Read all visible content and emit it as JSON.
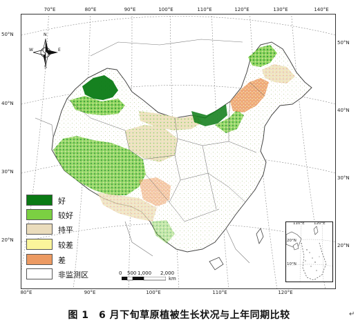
{
  "map": {
    "legend": {
      "items": [
        {
          "label": "好",
          "color": "#0a7a14"
        },
        {
          "label": "较好",
          "color": "#7bd042"
        },
        {
          "label": "持平",
          "color": "#eadcbc"
        },
        {
          "label": "较差",
          "color": "#fbf59b"
        },
        {
          "label": "差",
          "color": "#ec9a62"
        },
        {
          "label": "非监测区",
          "color": "#ffffff"
        }
      ]
    },
    "ticks": {
      "top": [
        "70°E",
        "80°E",
        "90°E",
        "100°E",
        "110°E",
        "120°E",
        "130°E",
        "140°E"
      ],
      "bottom": [
        "80°E",
        "90°E",
        "100°E",
        "110°E",
        "120°E"
      ],
      "left": [
        "50°N",
        "40°N",
        "30°N",
        "20°N"
      ],
      "right": [
        "50°N",
        "40°N",
        "30°N",
        "20°N"
      ]
    },
    "compass": {
      "n": "N",
      "s": "S",
      "e": "E",
      "w": "W"
    },
    "scale": {
      "labels": [
        "0",
        "500",
        "1,000",
        "2,000"
      ],
      "unit": "km"
    },
    "inset": {
      "top_ticks": [
        "110°E",
        "120°E"
      ],
      "left_ticks": [
        "20°N",
        "10°N"
      ]
    }
  },
  "caption": "图 1　6 月下旬草原植被生长状况与上年同期比较",
  "caption_end_mark": "↵"
}
